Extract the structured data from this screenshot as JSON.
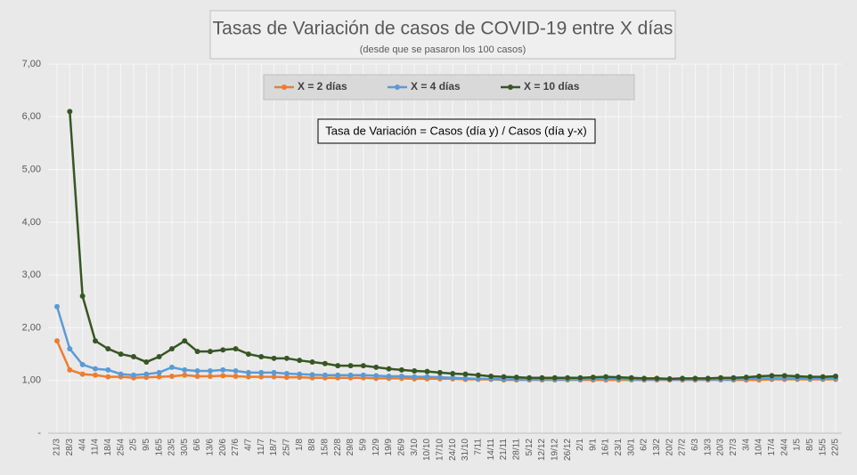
{
  "chart_data": {
    "type": "line",
    "title": "Tasas de Variación de casos de COVID-19 entre X días",
    "subtitle": "(desde que se pasaron los 100 casos)",
    "annotation": "Tasa de Variación = Casos (día y) / Casos (día y-x)",
    "categories": [
      "21/3",
      "28/3",
      "4/4",
      "11/4",
      "18/4",
      "25/4",
      "2/5",
      "9/5",
      "16/5",
      "23/5",
      "30/5",
      "6/6",
      "13/6",
      "20/6",
      "27/6",
      "4/7",
      "11/7",
      "18/7",
      "25/7",
      "1/8",
      "8/8",
      "15/8",
      "22/8",
      "29/8",
      "5/9",
      "12/9",
      "19/9",
      "26/9",
      "3/10",
      "10/10",
      "17/10",
      "24/10",
      "31/10",
      "7/11",
      "14/11",
      "21/11",
      "28/11",
      "5/12",
      "12/12",
      "19/12",
      "26/12",
      "2/1",
      "9/1",
      "16/1",
      "23/1",
      "30/1",
      "6/2",
      "13/2",
      "20/2",
      "27/2",
      "6/3",
      "13/3",
      "20/3",
      "27/3",
      "3/4",
      "10/4",
      "17/4",
      "24/4",
      "1/5",
      "8/5",
      "15/5",
      "22/5"
    ],
    "series": [
      {
        "name": "X = 2 días",
        "color": "#ed7d31",
        "values": [
          1.75,
          1.2,
          1.12,
          1.1,
          1.07,
          1.07,
          1.05,
          1.06,
          1.07,
          1.08,
          1.1,
          1.08,
          1.08,
          1.09,
          1.08,
          1.07,
          1.07,
          1.07,
          1.06,
          1.06,
          1.05,
          1.05,
          1.05,
          1.05,
          1.05,
          1.04,
          1.04,
          1.04,
          1.03,
          1.03,
          1.03,
          1.03,
          1.02,
          1.02,
          1.02,
          1.01,
          1.01,
          1.01,
          1.01,
          1.01,
          1.01,
          1.01,
          1.01,
          1.01,
          1.01,
          1.01,
          1.01,
          1.01,
          1.01,
          1.01,
          1.01,
          1.01,
          1.01,
          1.01,
          1.01,
          1.01,
          1.02,
          1.02,
          1.02,
          1.02,
          1.02,
          1.02
        ]
      },
      {
        "name": "X = 4 días",
        "color": "#5b9bd5",
        "values": [
          2.4,
          1.6,
          1.3,
          1.22,
          1.2,
          1.12,
          1.1,
          1.12,
          1.15,
          1.25,
          1.2,
          1.18,
          1.18,
          1.2,
          1.18,
          1.15,
          1.15,
          1.15,
          1.13,
          1.12,
          1.11,
          1.1,
          1.1,
          1.1,
          1.1,
          1.09,
          1.08,
          1.08,
          1.07,
          1.07,
          1.06,
          1.05,
          1.04,
          1.03,
          1.03,
          1.02,
          1.02,
          1.02,
          1.02,
          1.02,
          1.02,
          1.02,
          1.03,
          1.03,
          1.03,
          1.02,
          1.02,
          1.02,
          1.02,
          1.02,
          1.02,
          1.02,
          1.02,
          1.02,
          1.03,
          1.04,
          1.04,
          1.04,
          1.04,
          1.03,
          1.03,
          1.04
        ]
      },
      {
        "name": "X = 10 días",
        "color": "#375623",
        "values": [
          null,
          6.1,
          2.6,
          1.75,
          1.6,
          1.5,
          1.45,
          1.35,
          1.45,
          1.6,
          1.75,
          1.55,
          1.55,
          1.58,
          1.6,
          1.5,
          1.45,
          1.42,
          1.42,
          1.38,
          1.35,
          1.32,
          1.28,
          1.28,
          1.28,
          1.25,
          1.22,
          1.2,
          1.18,
          1.17,
          1.15,
          1.13,
          1.12,
          1.1,
          1.08,
          1.07,
          1.06,
          1.05,
          1.05,
          1.05,
          1.05,
          1.05,
          1.06,
          1.07,
          1.06,
          1.05,
          1.04,
          1.04,
          1.03,
          1.04,
          1.04,
          1.04,
          1.05,
          1.05,
          1.06,
          1.08,
          1.09,
          1.09,
          1.08,
          1.07,
          1.07,
          1.08
        ]
      }
    ],
    "ylim": [
      0,
      7
    ],
    "yticks": [
      {
        "value": 0,
        "label": "-"
      },
      {
        "value": 1,
        "label": "1,00"
      },
      {
        "value": 2,
        "label": "2,00"
      },
      {
        "value": 3,
        "label": "3,00"
      },
      {
        "value": 4,
        "label": "4,00"
      },
      {
        "value": 5,
        "label": "5,00"
      },
      {
        "value": 6,
        "label": "6,00"
      },
      {
        "value": 7,
        "label": "7,00"
      }
    ],
    "grid": true
  }
}
